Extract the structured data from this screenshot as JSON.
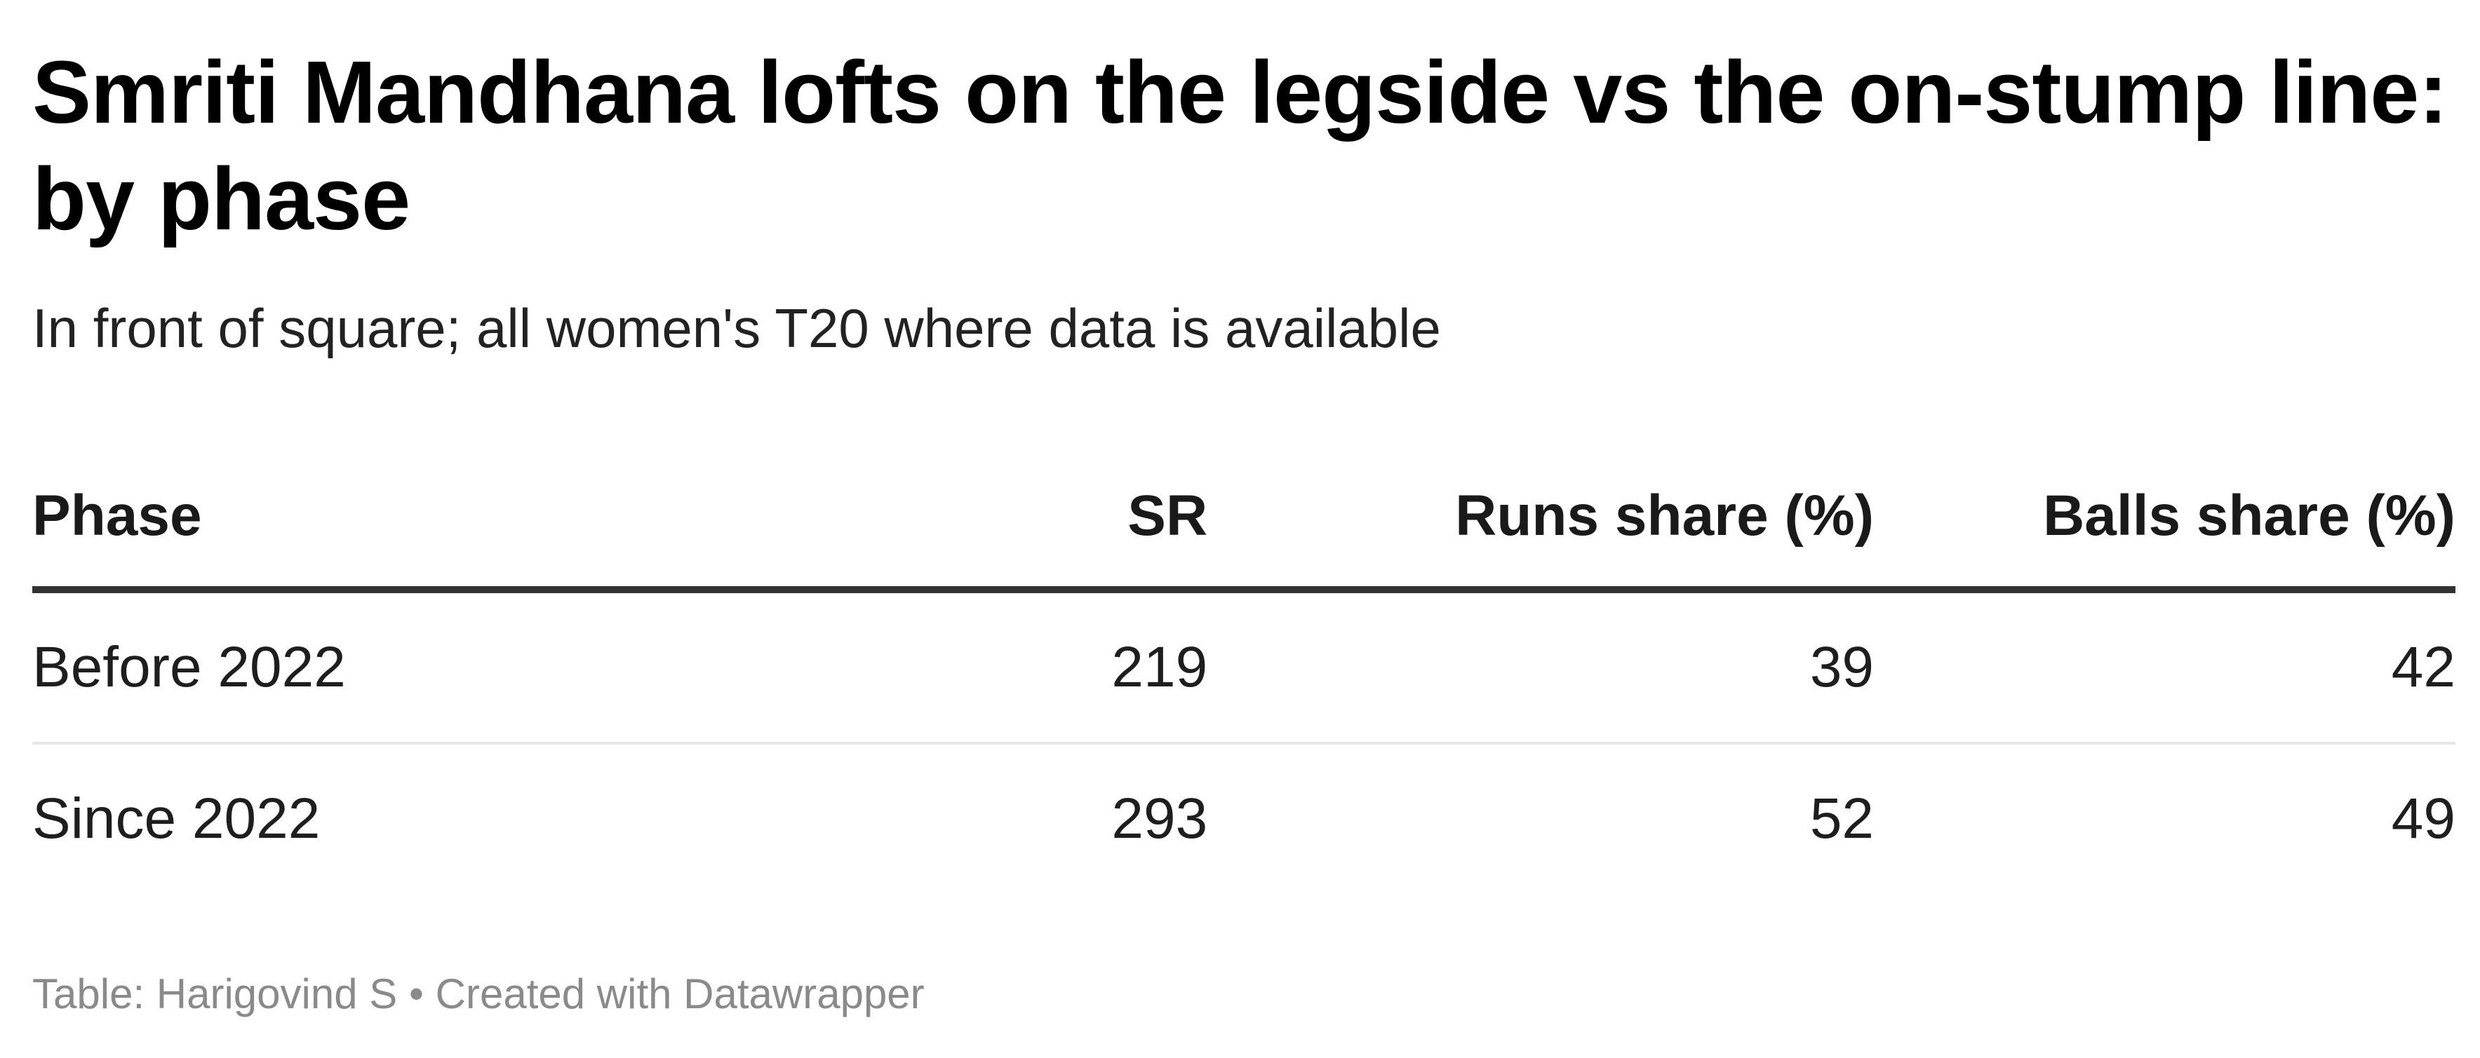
{
  "chart_data": {
    "type": "table",
    "title": "Smriti Mandhana lofts on the legside vs the on-stump line: by phase",
    "subtitle": "In front of square; all women's T20 where data is available",
    "columns": [
      "Phase",
      "SR",
      "Runs share (%)",
      "Balls share (%)"
    ],
    "rows": [
      {
        "phase": "Before 2022",
        "sr": "219",
        "runs_share": "39",
        "balls_share": "42"
      },
      {
        "phase": "Since 2022",
        "sr": "293",
        "runs_share": "52",
        "balls_share": "49"
      }
    ],
    "footer": {
      "source": "Table: Harigovind S",
      "separator": "•",
      "credit": "Created with Datawrapper"
    }
  }
}
